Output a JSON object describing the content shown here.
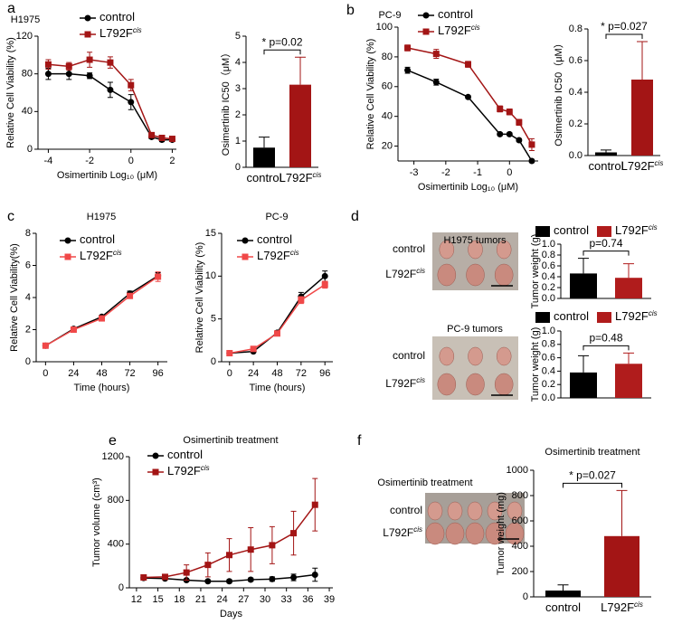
{
  "panel_labels": [
    "a",
    "b",
    "c",
    "d",
    "e",
    "f"
  ],
  "photos": [
    {
      "title": "H1975 tumors",
      "rows": [
        [
          "control"
        ],
        [
          "L792F",
          "cis"
        ]
      ]
    },
    {
      "title": "PC-9 tumors",
      "rows": [
        [
          "control"
        ],
        [
          "L792F",
          "cis"
        ]
      ]
    },
    {
      "title": "Osimertinib treatment",
      "rows": [
        [
          "control"
        ],
        [
          "L792F",
          "cis"
        ]
      ]
    }
  ],
  "chart_data": [
    {
      "type": "line",
      "title": "H1975",
      "xlabel": "Osimertinib Log₁₀ (μM)",
      "ylabel": "Relative Cell Viability (%)",
      "x": [
        -4,
        -3,
        -2,
        -1,
        0,
        1,
        1.5,
        2
      ],
      "xlim": [
        -4.5,
        2.2
      ],
      "xticks": [
        -4,
        -2,
        0,
        2
      ],
      "ylim": [
        0,
        120
      ],
      "yticks": [
        0,
        40,
        80,
        120
      ],
      "legend": "upper left",
      "series": [
        {
          "name": [
            "control"
          ],
          "color": "#000000",
          "marker": "circle",
          "values": [
            80,
            80,
            78,
            63,
            50,
            13,
            10,
            10
          ],
          "errors": [
            6,
            6,
            3,
            8,
            8,
            2,
            2,
            1
          ]
        },
        {
          "name": [
            "L792F",
            "cis"
          ],
          "color": "#a31515",
          "marker": "square",
          "values": [
            90,
            88,
            95,
            92,
            68,
            15,
            12,
            11
          ],
          "errors": [
            5,
            4,
            8,
            6,
            6,
            2,
            2,
            1
          ]
        }
      ]
    },
    {
      "type": "bar",
      "ylabel": "Osimertinib IC50（μM）",
      "categories": [
        [
          "control"
        ],
        [
          "L792F",
          "cis"
        ]
      ],
      "values": [
        0.75,
        3.15
      ],
      "errors": [
        0.4,
        1.05
      ],
      "colors": [
        "#000000",
        "#a31515"
      ],
      "ylim": [
        0,
        5
      ],
      "yticks": [
        0,
        1,
        2,
        3,
        4,
        5
      ],
      "annotation": "* p=0.02"
    },
    {
      "type": "line",
      "title": "PC-9",
      "xlabel": "Osimertinib Log₁₀ (μM)",
      "ylabel": "Relative Cell Viability (%)",
      "x": [
        -3.2,
        -2.3,
        -1.3,
        -0.3,
        0,
        0.3,
        0.7
      ],
      "xlim": [
        -3.5,
        0.9
      ],
      "xticks": [
        -3,
        -2,
        -1,
        0
      ],
      "ylim": [
        10,
        100
      ],
      "yticks": [
        20,
        40,
        60,
        80,
        100
      ],
      "legend": "upper left",
      "series": [
        {
          "name": [
            "control"
          ],
          "color": "#000000",
          "marker": "circle",
          "values": [
            71,
            63,
            53,
            28,
            28,
            24,
            10
          ],
          "errors": [
            2,
            2,
            1,
            1,
            1,
            1,
            1
          ]
        },
        {
          "name": [
            "L792F",
            "cis"
          ],
          "color": "#a31515",
          "marker": "square",
          "values": [
            86,
            82,
            75,
            45,
            43,
            36,
            21
          ],
          "errors": [
            2,
            3,
            2,
            2,
            2,
            2,
            4
          ]
        }
      ]
    },
    {
      "type": "bar",
      "ylabel": "Osimertinib IC50（μM）",
      "categories": [
        [
          "control"
        ],
        [
          "L792F",
          "cis"
        ]
      ],
      "values": [
        0.02,
        0.48
      ],
      "errors": [
        0.015,
        0.24
      ],
      "colors": [
        "#000000",
        "#a31515"
      ],
      "ylim": [
        0,
        0.8
      ],
      "yticks": [
        {
          "value": 0,
          "label": "0.0"
        },
        0.2,
        0.4,
        0.6,
        0.8
      ],
      "annotation": "* p=0.027"
    },
    {
      "type": "line",
      "title": "H1975",
      "xlabel": "Time (hours)",
      "ylabel": "Relative Cell Viability(%)",
      "x": [
        0,
        24,
        48,
        72,
        96
      ],
      "xlim": [
        -8,
        104
      ],
      "xticks": [
        0,
        24,
        48,
        72,
        96
      ],
      "ylim": [
        0,
        8
      ],
      "yticks": [
        0,
        2,
        4,
        6,
        8
      ],
      "legend": "upper left",
      "series": [
        {
          "name": [
            "control"
          ],
          "color": "#000000",
          "marker": "circle",
          "values": [
            1,
            2.05,
            2.8,
            4.25,
            5.35
          ],
          "errors": [
            0.05,
            0.08,
            0.1,
            0.15,
            0.2
          ]
        },
        {
          "name": [
            "L792F",
            "cis"
          ],
          "color": "#f04848",
          "marker": "square",
          "values": [
            1,
            2,
            2.7,
            4.1,
            5.3
          ],
          "errors": [
            0.05,
            0.08,
            0.1,
            0.15,
            0.3
          ]
        }
      ]
    },
    {
      "type": "line",
      "title": "PC-9",
      "xlabel": "Time (hours)",
      "ylabel": "Relative Cell Viability (%)",
      "x": [
        0,
        24,
        48,
        72,
        96
      ],
      "xlim": [
        -8,
        104
      ],
      "xticks": [
        0,
        24,
        48,
        72,
        96
      ],
      "ylim": [
        0,
        15
      ],
      "yticks": [
        0,
        5,
        10,
        15
      ],
      "legend": "upper left",
      "series": [
        {
          "name": [
            "control"
          ],
          "color": "#000000",
          "marker": "circle",
          "values": [
            1,
            1.2,
            3.4,
            7.6,
            10
          ],
          "errors": [
            0.1,
            0.1,
            0.2,
            0.5,
            0.6
          ]
        },
        {
          "name": [
            "L792F",
            "cis"
          ],
          "color": "#f04848",
          "marker": "square",
          "values": [
            1,
            1.5,
            3.3,
            7.2,
            9
          ],
          "errors": [
            0.1,
            0.1,
            0.2,
            0.4,
            0.4
          ]
        }
      ]
    },
    {
      "type": "bar",
      "ylabel": "Tumor weight (g)",
      "ylim": [
        0,
        1
      ],
      "yticks": [
        {
          "value": 0,
          "label": "0.0"
        },
        0.2,
        0.4,
        0.6,
        0.8,
        {
          "value": 1,
          "label": "1.0"
        }
      ],
      "annotation": "p=0.74",
      "legend": "top",
      "series": [
        {
          "name": [
            "control"
          ],
          "color": "#000000",
          "values": [
            0.46
          ],
          "errors": [
            0.28
          ]
        },
        {
          "name": [
            "L792F",
            "cis"
          ],
          "color": "#b01c1c",
          "values": [
            0.38
          ],
          "errors": [
            0.26
          ]
        }
      ]
    },
    {
      "type": "bar",
      "ylabel": "Tumor weight (g)",
      "ylim": [
        0,
        1
      ],
      "yticks": [
        {
          "value": 0,
          "label": "0.0"
        },
        0.2,
        0.4,
        0.6,
        0.8,
        {
          "value": 1,
          "label": "1.0"
        }
      ],
      "annotation": "p=0.48",
      "legend": "top",
      "series": [
        {
          "name": [
            "control"
          ],
          "color": "#000000",
          "values": [
            0.38
          ],
          "errors": [
            0.25
          ]
        },
        {
          "name": [
            "L792F",
            "cis"
          ],
          "color": "#b01c1c",
          "values": [
            0.51
          ],
          "errors": [
            0.16
          ]
        }
      ]
    },
    {
      "type": "line",
      "title": "Osimertinib treatment",
      "xlabel": "Days",
      "ylabel": "Tumor volume (cm³)",
      "x": [
        13,
        16,
        19,
        22,
        25,
        28,
        31,
        34,
        37
      ],
      "xlim": [
        11,
        39.5
      ],
      "xticks": [
        12,
        15,
        18,
        21,
        24,
        27,
        30,
        33,
        36,
        39
      ],
      "ylim": [
        0,
        1200
      ],
      "yticks": [
        0,
        400,
        800,
        1200
      ],
      "legend": "upper left",
      "series": [
        {
          "name": [
            "control"
          ],
          "color": "#000000",
          "marker": "circle",
          "values": [
            90,
            85,
            70,
            60,
            60,
            75,
            80,
            95,
            120
          ],
          "errors": [
            10,
            10,
            10,
            10,
            15,
            15,
            20,
            30,
            60
          ]
        },
        {
          "name": [
            "L792F",
            "cis"
          ],
          "color": "#a31515",
          "marker": "square",
          "values": [
            95,
            100,
            140,
            210,
            300,
            350,
            390,
            500,
            760
          ],
          "errors": [
            10,
            15,
            70,
            110,
            150,
            200,
            170,
            200,
            240
          ]
        }
      ]
    },
    {
      "type": "bar",
      "title": "Osimertinib treatment",
      "ylabel": "Tumor weight (mg)",
      "categories": [
        [
          "control"
        ],
        [
          "L792F",
          "cis"
        ]
      ],
      "values": [
        50,
        480
      ],
      "errors": [
        45,
        360
      ],
      "colors": [
        "#000000",
        "#a31515"
      ],
      "ylim": [
        0,
        1000
      ],
      "yticks": [
        0,
        200,
        400,
        600,
        800,
        1000
      ],
      "annotation": "* p=0.027"
    }
  ]
}
